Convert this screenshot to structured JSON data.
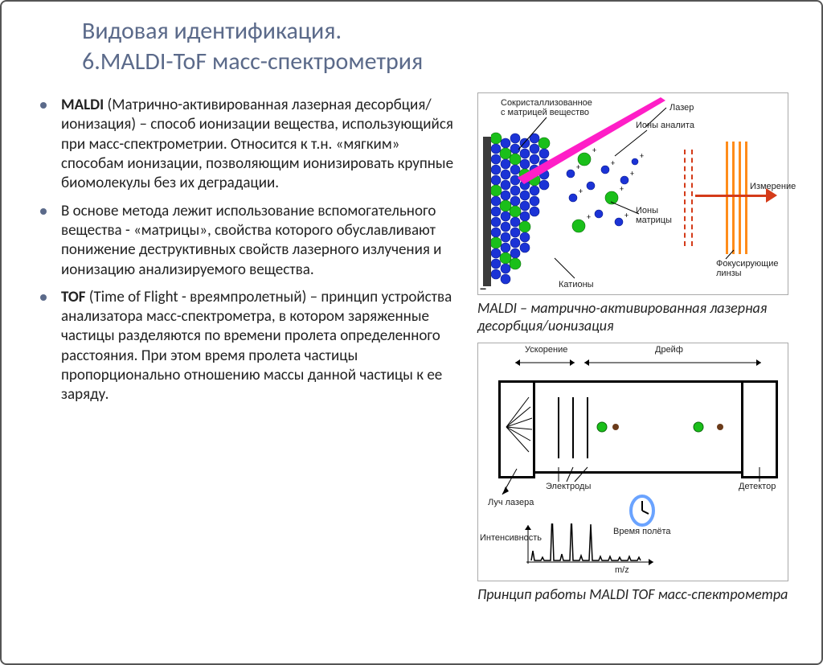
{
  "title": {
    "line1": "Видовая идентификация.",
    "line2": "6.MALDI-ToF масс-спектрометрия",
    "color": "#5b6a8a",
    "fontsize": 30
  },
  "bullets": [
    {
      "bold": "MALDI",
      "text": " (Матрично-активированная лазерная десорбция/ионизация) – способ ионизации вещества, использующийся при масс-спектрометрии. Относится к т.н. «мягким» способам ионизации, позволяющим ионизировать крупные биомолекулы без их деградации."
    },
    {
      "bold": "",
      "text": "В основе метода лежит использование вспомогательного вещества - «матрицы», свойства которого обуславливают понижение деструктивных свойств лазерного излучения и ионизацию анализируемого вещества."
    },
    {
      "bold": "TOF",
      "text": " (Time of Flight - вреямпролетный) – принцип устройства анализатора масс-спектрометра, в котором заряженные частицы разделяются по времени пролета определенного расстояния. При этом время пролета частицы пропорционально отношению массы данной частицы к ее заряду."
    }
  ],
  "fig1": {
    "caption": "MALDI – матрично-активированная лазерная десорбция/ионизация",
    "labels": {
      "cocryst": "Сокристаллизованное\nс матрицей вещество",
      "laser": "Лазер",
      "analyte_ions": "Ионы аналита",
      "measure": "Измерение",
      "matrix_ions": "Ионы\nматрицы",
      "cations": "Катионы",
      "focus_lens": "Фокусирующие\nлинзы",
      "minus": "−"
    },
    "colors": {
      "matrix_circle": "#1b33d6",
      "analyte_circle": "#1abf1a",
      "laser_beam": "#ff1ec7",
      "lens": "#ff8c1a",
      "arrow": "#d43b19",
      "focus_dash": "#d43b19",
      "slab": "#3b3b3b"
    }
  },
  "fig2": {
    "caption": "Принцип работы MALDI TOF масс-спектрометра",
    "labels": {
      "accel": "Ускорение",
      "drift": "Дрейф",
      "electrodes": "Электроды",
      "detector": "Детектор",
      "laser_beam": "Луч лазера",
      "time_of_flight": "Время полёта",
      "intensity": "Интенсивность",
      "mz": "m/z"
    },
    "colors": {
      "tube_border": "#000000",
      "green_ion": "#1abf1a",
      "brown_ion": "#6b3b1a",
      "clock_ring": "#6aa3ff"
    },
    "spectrum_peaks": [
      12,
      4,
      60,
      8,
      55,
      6,
      45,
      5,
      5,
      4,
      5,
      4
    ]
  },
  "style": {
    "bullet_color": "#5b6a8a",
    "text_color": "#222222",
    "body_fontsize": 19,
    "caption_fontsize": 18
  }
}
